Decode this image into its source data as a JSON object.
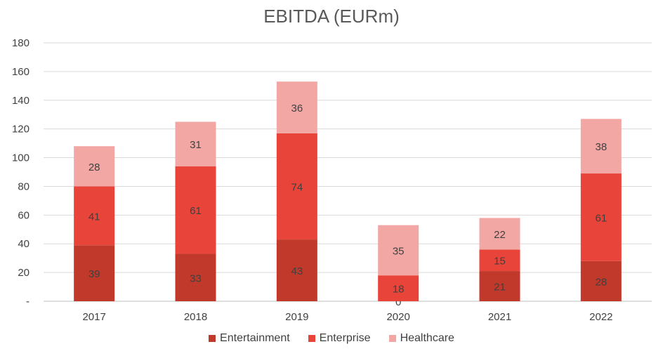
{
  "chart_data": {
    "type": "bar",
    "stacked": true,
    "title": "EBITDA (EURm)",
    "xlabel": "",
    "ylabel": "",
    "categories": [
      "2017",
      "2018",
      "2019",
      "2020",
      "2021",
      "2022"
    ],
    "series": [
      {
        "name": "Entertainment",
        "values": [
          39,
          33,
          43,
          0,
          21,
          28
        ],
        "color": "#C0392B"
      },
      {
        "name": "Enterprise",
        "values": [
          41,
          61,
          74,
          18,
          15,
          61
        ],
        "color": "#E8443A"
      },
      {
        "name": "Healthcare",
        "values": [
          28,
          31,
          36,
          35,
          22,
          38
        ],
        "color": "#F2A7A5"
      }
    ],
    "ylim": [
      0,
      180
    ],
    "yticks": [
      "-",
      "20",
      "40",
      "60",
      "80",
      "100",
      "120",
      "140",
      "160",
      "180"
    ],
    "grid": true,
    "legend_position": "bottom",
    "data_labels": true
  }
}
